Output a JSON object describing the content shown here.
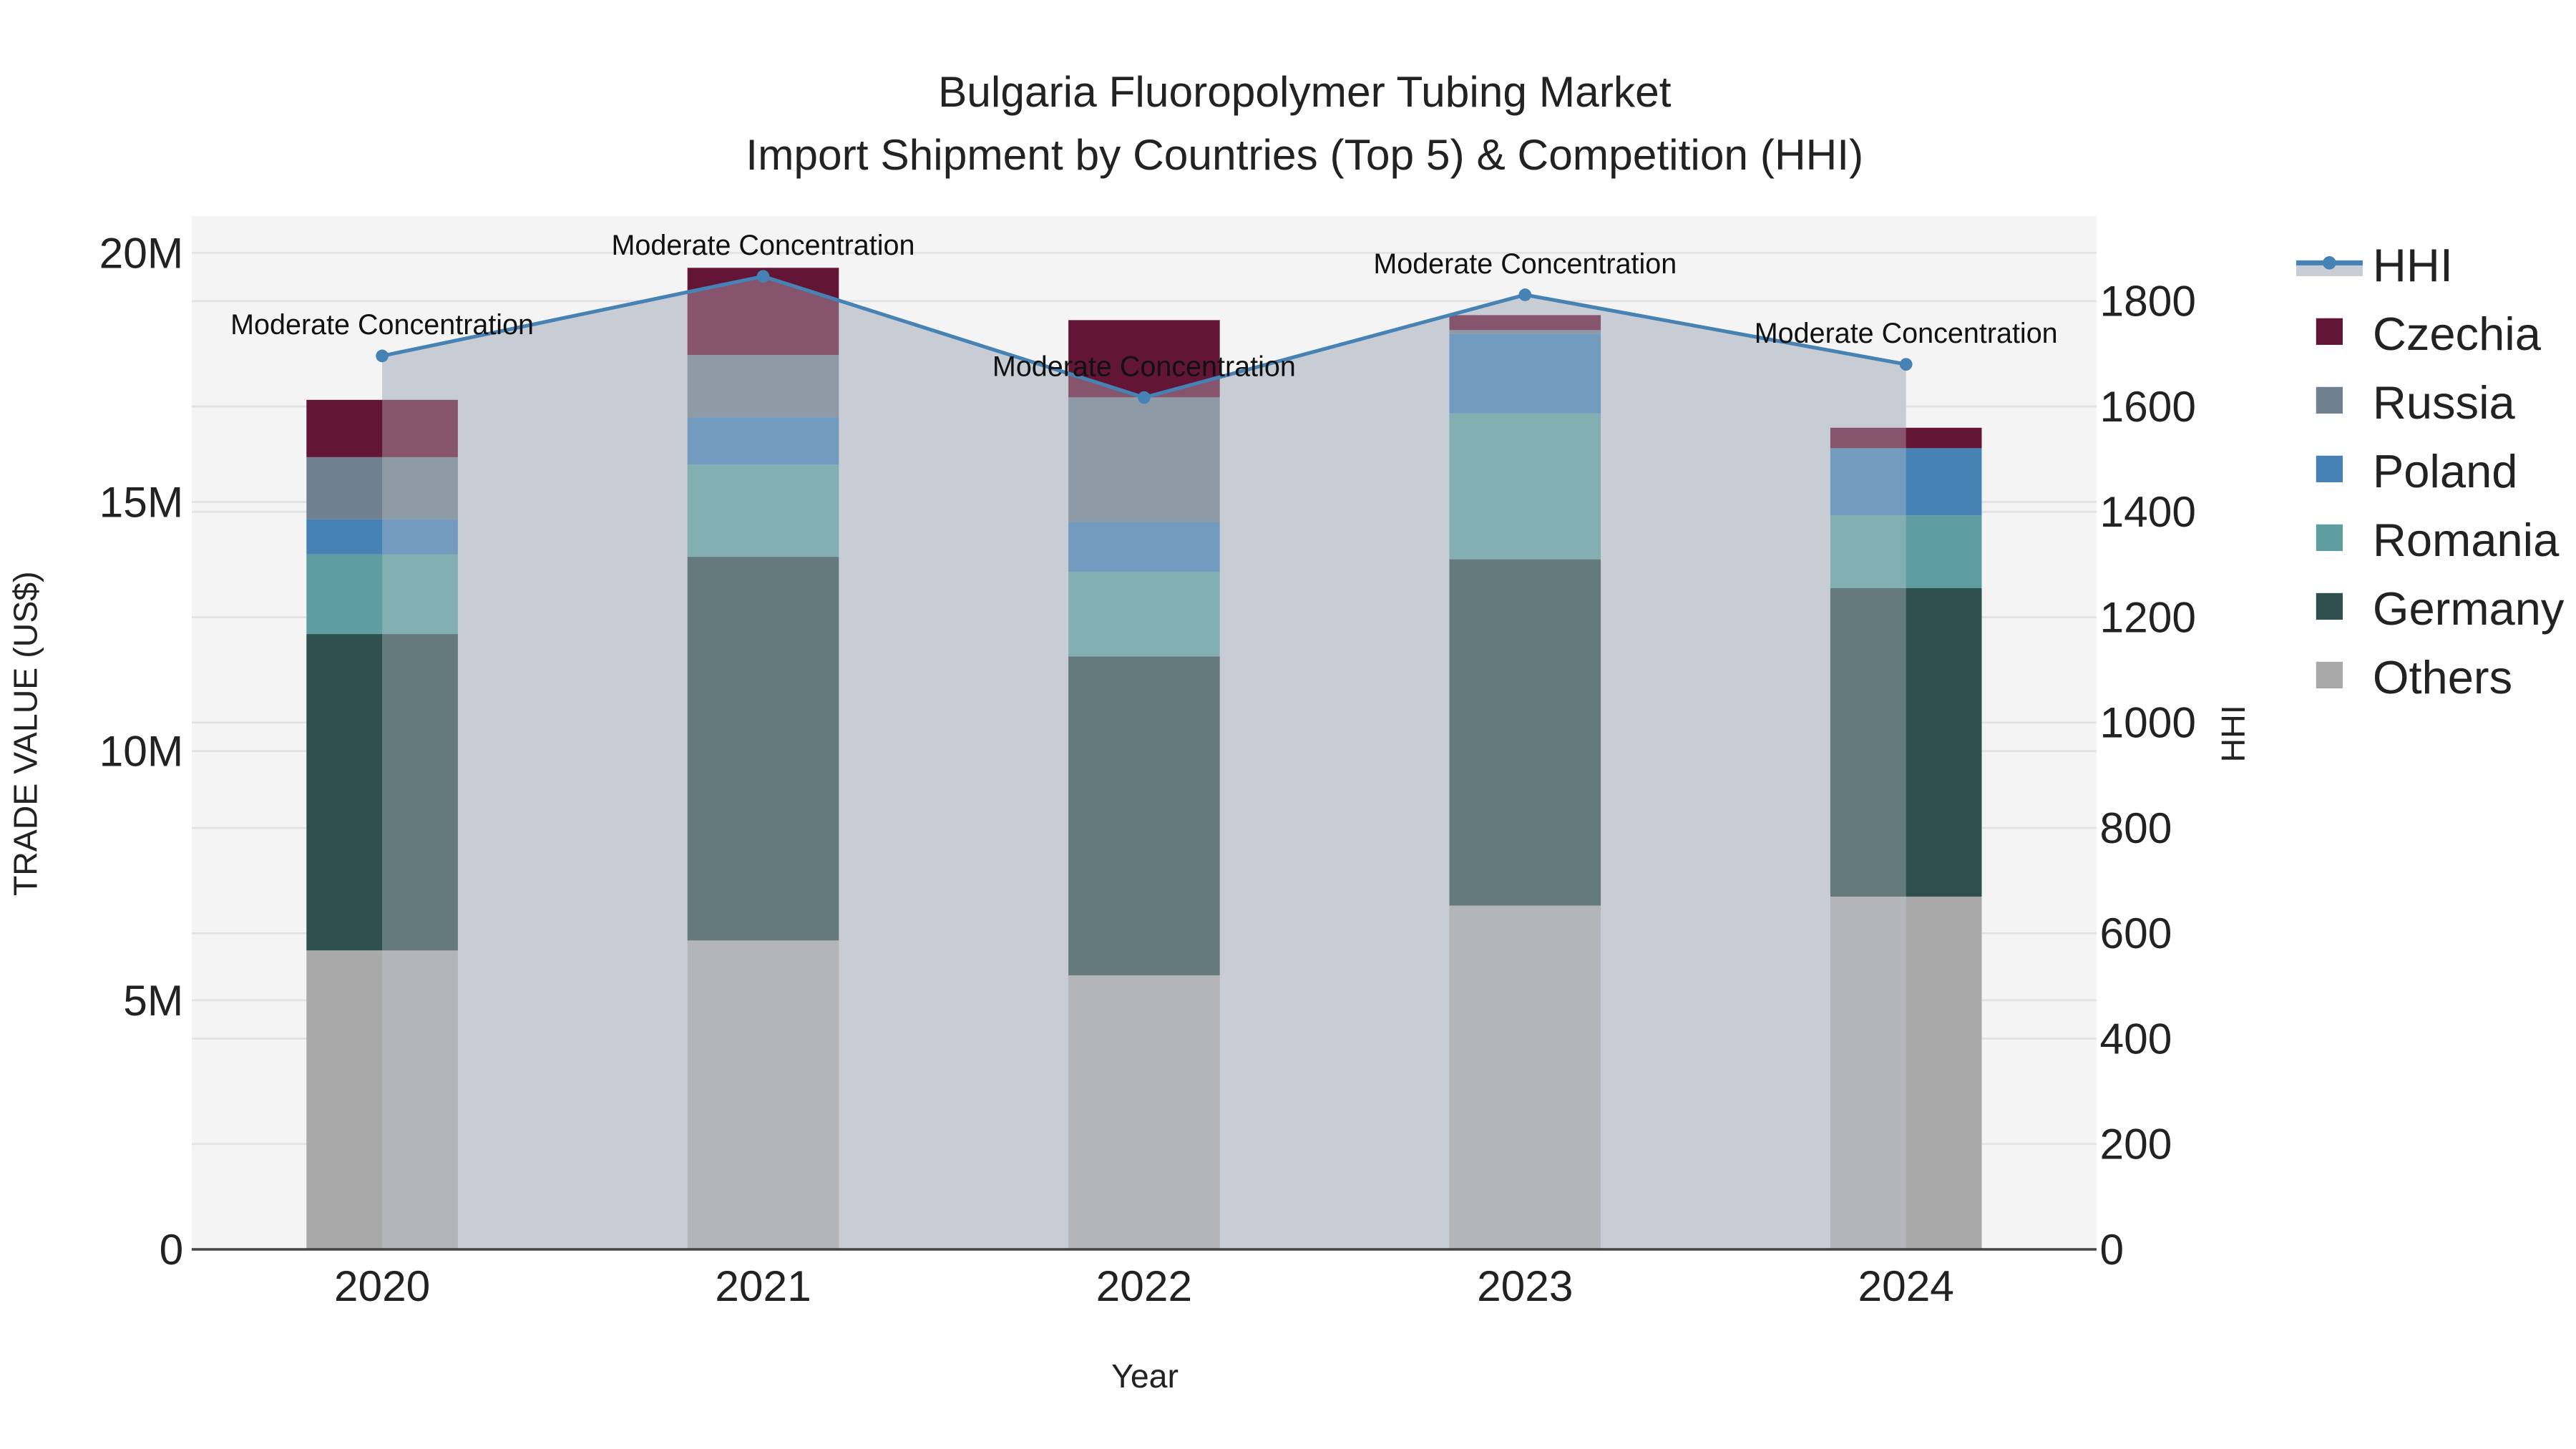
{
  "title": {
    "line1": "Bulgaria Fluoropolymer Tubing Market",
    "line2": "Import Shipment by Countries (Top 5) & Competition (HHI)"
  },
  "axes": {
    "x_label": "Year",
    "y_left_label": "TRADE VALUE (US$)",
    "y_right_label": "HHI",
    "y_left_ticks": [
      "0",
      "5M",
      "10M",
      "15M",
      "20M"
    ],
    "y_right_ticks": [
      "0",
      "200",
      "400",
      "600",
      "800",
      "1000",
      "1200",
      "1400",
      "1600",
      "1800"
    ]
  },
  "legend": [
    {
      "name": "HHI",
      "color": "#4682b4",
      "kind": "line"
    },
    {
      "name": "Czechia",
      "color": "#631535",
      "kind": "box"
    },
    {
      "name": "Russia",
      "color": "#708090",
      "kind": "box"
    },
    {
      "name": "Poland",
      "color": "#4682b4",
      "kind": "box"
    },
    {
      "name": "Romania",
      "color": "#5f9ea0",
      "kind": "box"
    },
    {
      "name": "Germany",
      "color": "#2f4f4f",
      "kind": "box"
    },
    {
      "name": "Others",
      "color": "#a9a9a9",
      "kind": "box"
    }
  ],
  "annotations": [
    "Moderate Concentration",
    "Moderate Concentration",
    "Moderate Concentration",
    "Moderate Concentration",
    "Moderate Concentration"
  ],
  "chart_data": {
    "type": "bar",
    "stacked": true,
    "title": "Bulgaria Fluoropolymer Tubing Market — Import Shipment by Countries (Top 5) & Competition (HHI)",
    "xlabel": "Year",
    "ylabel": "TRADE VALUE (US$)",
    "y2label": "HHI",
    "ylim": [
      0,
      20700000
    ],
    "y2lim": [
      0,
      1960
    ],
    "grid": true,
    "legend_position": "right",
    "categories": [
      "2020",
      "2021",
      "2022",
      "2023",
      "2024"
    ],
    "series": [
      {
        "name": "Others",
        "color": "#a9a9a9",
        "values": [
          6000000,
          6200000,
          5500000,
          6900000,
          7080000
        ]
      },
      {
        "name": "Germany",
        "color": "#2f4f4f",
        "values": [
          6350000,
          7700000,
          6400000,
          6950000,
          6190000
        ]
      },
      {
        "name": "Romania",
        "color": "#5f9ea0",
        "values": [
          1600000,
          1850000,
          1700000,
          2930000,
          1460000
        ]
      },
      {
        "name": "Poland",
        "color": "#4682b4",
        "values": [
          700000,
          950000,
          1000000,
          1600000,
          1350000
        ]
      },
      {
        "name": "Russia",
        "color": "#708090",
        "values": [
          1250000,
          1250000,
          2500000,
          70000,
          0
        ]
      },
      {
        "name": "Czechia",
        "color": "#631535",
        "values": [
          1150000,
          1750000,
          1550000,
          300000,
          410000
        ]
      }
    ],
    "line_series": {
      "name": "HHI",
      "axis": "right",
      "color": "#4682b4",
      "values": [
        1696,
        1847,
        1617,
        1812,
        1680
      ],
      "labels": [
        "Moderate Concentration",
        "Moderate Concentration",
        "Moderate Concentration",
        "Moderate Concentration",
        "Moderate Concentration"
      ]
    }
  }
}
